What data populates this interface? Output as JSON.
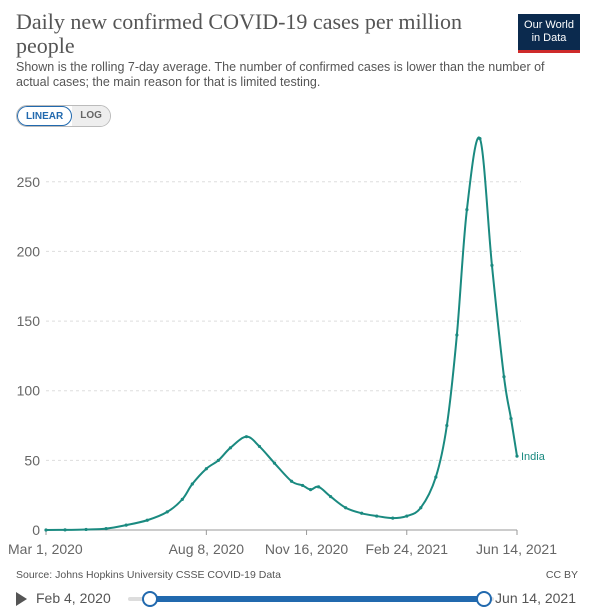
{
  "header": {
    "title": "Daily new confirmed COVID-19 cases per million people",
    "subtitle": "Shown is the rolling 7-day average. The number of confirmed cases is lower than the number of actual cases; the main reason for that is limited testing.",
    "logo_line1": "Our World",
    "logo_line2": "in Data"
  },
  "scale_toggle": {
    "linear": "LINEAR",
    "log": "LOG",
    "selected": "LINEAR"
  },
  "footer": {
    "source": "Source: Johns Hopkins University CSSE COVID-19 Data",
    "license": "CC BY"
  },
  "timeline": {
    "start_label": "Feb 4, 2020",
    "end_label": "Jun 14, 2021"
  },
  "colors": {
    "series": "#1a8a80",
    "accent": "#2169ae",
    "grid": "#dddddd"
  },
  "chart_data": {
    "type": "line",
    "title": "Daily new confirmed COVID-19 cases per million people",
    "xlabel": "",
    "ylabel": "",
    "ylim": [
      0,
      280
    ],
    "xlim": [
      "2020-03-01",
      "2021-06-14"
    ],
    "yticks": [
      0,
      50,
      100,
      150,
      200,
      250
    ],
    "xticks": [
      {
        "date": "2020-03-01",
        "label": "Mar 1, 2020"
      },
      {
        "date": "2020-08-08",
        "label": "Aug 8, 2020"
      },
      {
        "date": "2020-11-16",
        "label": "Nov 16, 2020"
      },
      {
        "date": "2021-02-24",
        "label": "Feb 24, 2021"
      },
      {
        "date": "2021-06-14",
        "label": "Jun 14, 2021"
      }
    ],
    "grid": true,
    "series": [
      {
        "name": "India",
        "points": [
          [
            "2020-03-01",
            0
          ],
          [
            "2020-03-20",
            0.1
          ],
          [
            "2020-04-10",
            0.4
          ],
          [
            "2020-04-30",
            1
          ],
          [
            "2020-05-20",
            3.5
          ],
          [
            "2020-06-10",
            7
          ],
          [
            "2020-06-30",
            13
          ],
          [
            "2020-07-15",
            22
          ],
          [
            "2020-07-25",
            33
          ],
          [
            "2020-08-08",
            44
          ],
          [
            "2020-08-20",
            50
          ],
          [
            "2020-09-01",
            59
          ],
          [
            "2020-09-17",
            67
          ],
          [
            "2020-09-30",
            60
          ],
          [
            "2020-10-15",
            48
          ],
          [
            "2020-11-01",
            35
          ],
          [
            "2020-11-12",
            32
          ],
          [
            "2020-11-20",
            29
          ],
          [
            "2020-11-28",
            31
          ],
          [
            "2020-12-10",
            24
          ],
          [
            "2020-12-25",
            16
          ],
          [
            "2021-01-10",
            12
          ],
          [
            "2021-01-25",
            10
          ],
          [
            "2021-02-10",
            8.5
          ],
          [
            "2021-02-24",
            10
          ],
          [
            "2021-03-10",
            16
          ],
          [
            "2021-03-25",
            38
          ],
          [
            "2021-04-05",
            75
          ],
          [
            "2021-04-15",
            140
          ],
          [
            "2021-04-25",
            230
          ],
          [
            "2021-05-08",
            281
          ],
          [
            "2021-05-20",
            190
          ],
          [
            "2021-06-01",
            110
          ],
          [
            "2021-06-08",
            80
          ],
          [
            "2021-06-14",
            53
          ]
        ]
      }
    ]
  }
}
